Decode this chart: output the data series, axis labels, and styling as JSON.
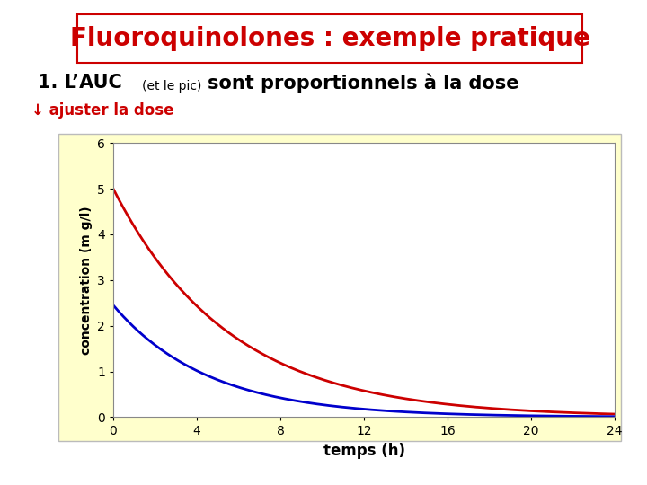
{
  "title": "Fluoroquinolones : exemple pratique",
  "title_color": "#cc0000",
  "title_fontsize": 20,
  "subtitle_main": "1. L’AUC ",
  "subtitle_small": "(et le pic) ",
  "subtitle_rest": "sont proportionnels à la dose",
  "subtitle_fontsize": 15,
  "subtitle_small_fontsize": 10,
  "arrow_text": "↓ ajuster la dose",
  "arrow_text_color": "#cc0000",
  "arrow_text_fontsize": 12,
  "red_curve_start": 5.0,
  "blue_curve_start": 2.45,
  "red_decay": 0.18,
  "blue_decay": 0.22,
  "x_max": 24,
  "x_ticks": [
    0,
    4,
    8,
    12,
    16,
    20,
    24
  ],
  "y_max": 6,
  "y_ticks": [
    0,
    1,
    2,
    3,
    4,
    5,
    6
  ],
  "xlabel": "temps (h)",
  "ylabel": "concentration (m g/l)",
  "xlabel_fontsize": 12,
  "ylabel_fontsize": 10,
  "red_color": "#cc0000",
  "blue_color": "#0000cc",
  "plot_bg_color": "#ffffcc",
  "outer_bg_color": "#ffffff",
  "title_box_color": "#ffffff",
  "title_box_edge": "#cc0000",
  "tick_fontsize": 10,
  "plot_inner_bg": "#ffffff"
}
